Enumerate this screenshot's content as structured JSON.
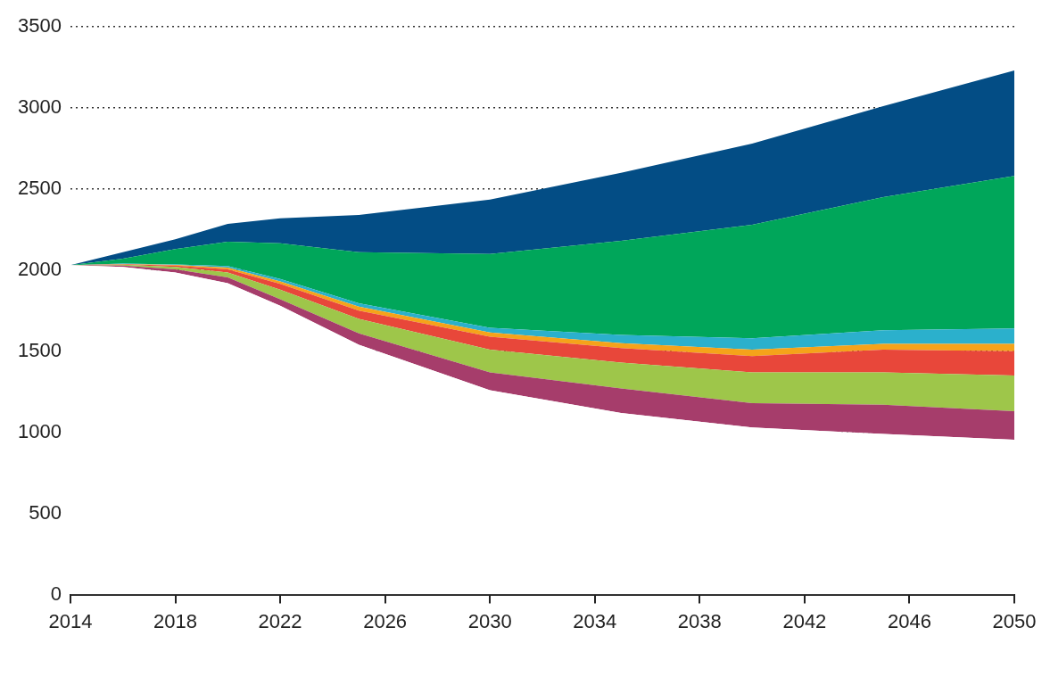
{
  "chart_data": {
    "type": "area",
    "stacked": true,
    "grid": true,
    "x": [
      2014,
      2016,
      2018,
      2020,
      2022,
      2025,
      2030,
      2035,
      2040,
      2045,
      2050
    ],
    "series": [
      {
        "color": "#ffffff",
        "values": [
          2030,
          2020,
          1985,
          1920,
          1780,
          1540,
          1260,
          1120,
          1030,
          990,
          955
        ]
      },
      {
        "color": "#a63d6b",
        "values": [
          0,
          8,
          20,
          35,
          40,
          70,
          110,
          150,
          150,
          180,
          175
        ]
      },
      {
        "color": "#9ec64a",
        "values": [
          0,
          5,
          15,
          30,
          60,
          90,
          140,
          160,
          190,
          200,
          220
        ]
      },
      {
        "color": "#e8473a",
        "values": [
          0,
          3,
          8,
          20,
          35,
          50,
          80,
          90,
          100,
          140,
          150
        ]
      },
      {
        "color": "#f5a31a",
        "values": [
          0,
          2,
          4,
          10,
          15,
          25,
          25,
          30,
          40,
          35,
          45
        ]
      },
      {
        "color": "#2bb0cc",
        "values": [
          0,
          2,
          3,
          10,
          15,
          20,
          30,
          50,
          70,
          85,
          95
        ]
      },
      {
        "color": "#00a65a",
        "values": [
          0,
          30,
          95,
          150,
          220,
          315,
          455,
          580,
          700,
          820,
          940
        ]
      },
      {
        "color": "#034d85",
        "values": [
          0,
          40,
          60,
          110,
          155,
          230,
          335,
          420,
          500,
          560,
          650
        ]
      }
    ],
    "xlim": [
      2014,
      2050
    ],
    "xticks": [
      2014,
      2018,
      2022,
      2026,
      2030,
      2034,
      2038,
      2042,
      2046,
      2050
    ],
    "ylim": [
      0,
      3500
    ],
    "yticks": [
      0,
      500,
      1000,
      1500,
      2000,
      2500,
      3000,
      3500
    ]
  }
}
